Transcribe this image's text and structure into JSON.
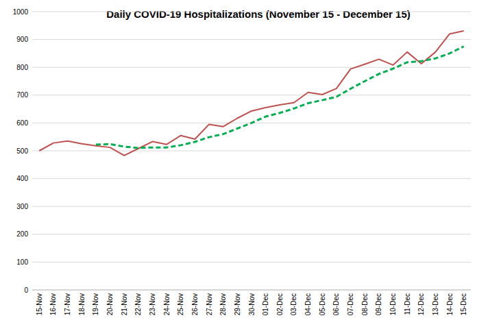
{
  "chart_data": {
    "type": "line",
    "title": "Daily COVID-19 Hospitalizations (November 15 - December 15)",
    "categories": [
      "15-Nov",
      "16-Nov",
      "17-Nov",
      "18-Nov",
      "19-Nov",
      "20-Nov",
      "21-Nov",
      "22-Nov",
      "23-Nov",
      "24-Nov",
      "25-Nov",
      "26-Nov",
      "27-Nov",
      "28-Nov",
      "29-Nov",
      "30-Nov",
      "01-Dec",
      "02-Dec",
      "03-Dec",
      "04-Dec",
      "05-Dec",
      "06-Dec",
      "07-Dec",
      "08-Dec",
      "09-Dec",
      "10-Dec",
      "11-Dec",
      "12-Dec",
      "13-Dec",
      "14-Dec",
      "15-Dec"
    ],
    "series": [
      {
        "color": "#c0504d",
        "line_style": "solid",
        "values": [
          500,
          528,
          535,
          525,
          518,
          512,
          483,
          508,
          533,
          523,
          555,
          542,
          595,
          587,
          617,
          643,
          655,
          665,
          673,
          710,
          702,
          724,
          794,
          811,
          829,
          808,
          855,
          813,
          855,
          920,
          931
        ]
      },
      {
        "color": "#00b050",
        "line_style": "dashed",
        "values": [
          null,
          null,
          null,
          null,
          522,
          524,
          515,
          510,
          512,
          512,
          520,
          532,
          549,
          560,
          580,
          600,
          623,
          636,
          652,
          671,
          682,
          694,
          723,
          750,
          776,
          795,
          818,
          822,
          832,
          850,
          875
        ]
      }
    ],
    "ylim": [
      0,
      1000
    ],
    "yticks": [
      0,
      100,
      200,
      300,
      400,
      500,
      600,
      700,
      800,
      900,
      1000
    ],
    "grid": true
  }
}
